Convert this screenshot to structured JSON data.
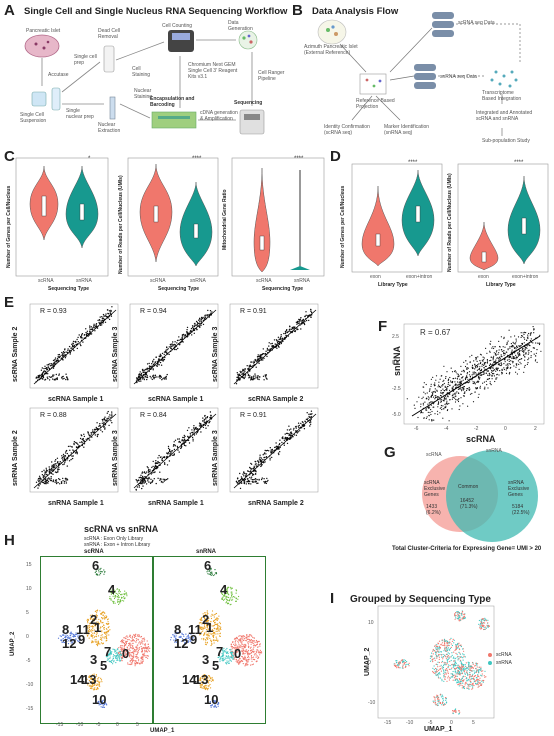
{
  "panelA": {
    "letter": "A",
    "title": "Single Cell and Single Nucleus RNA Sequencing Workflow",
    "labels": {
      "islet": "Pancreatic Islet",
      "accutase": "Accutase",
      "sc_prep": "Single cell prep",
      "dead": "Dead Cell Removal",
      "counting": "Cell Counting",
      "datagen": "Data Generation",
      "cell_staining": "Cell Staining",
      "susp": "Single Cell Suspension",
      "sn_prep": "Single nuclear prep",
      "nuc": "Nuclear Extraction",
      "nuc_stain": "Nuclear Staining",
      "chromium": "Chromium Next GEM Single Cell 3' Reagent Kits v3.1",
      "ranger": "Cell Ranger Pipeline",
      "encap": "Encapsulation and Barcoding",
      "cdna": "cDNA generation & Amplification",
      "seq": "Sequencing"
    }
  },
  "panelB": {
    "letter": "B",
    "title": "Data Analysis Flow",
    "labels": {
      "azimuth": "Azimuth Pancreatic Islet (External Reference)",
      "scdata": "scRNA seq Data",
      "sndata": "snRNA seq Data",
      "refproj": "Reference Based Projection",
      "transcriptome": "Transcriptome Based Integration",
      "identity": "Identity Confirmation (scRNA seq)",
      "marker": "Marker Identification (snRNA seq)",
      "integrated": "Integrated and Annotated scRNA and snRNA",
      "subpop": "Sub-population Study"
    }
  },
  "panelC": {
    "letter": "C",
    "ylabels": [
      "Number of Genes per Cell/Nucleus",
      "Number of Reads per Cell/Nucleus (UMIs)",
      "Mitochondrial Gene Ratio"
    ],
    "xlabel": "Sequencing Type",
    "groups": [
      "scRNA",
      "snRNA"
    ],
    "sig": [
      "*",
      "****",
      "****"
    ],
    "ticks1": [
      "2500",
      "5000",
      "7500",
      "10000"
    ],
    "ticks2": [
      "1e+03",
      "1e+04",
      "1e+05"
    ],
    "ticks3": [
      "0.00",
      "0.25",
      "0.50",
      "0.75",
      "1.00"
    ]
  },
  "panelD": {
    "letter": "D",
    "ylabels": [
      "Number of Genes per Cell/Nucleus",
      "Number of Reads per Cell/Nucleus (UMIs)"
    ],
    "xlabel": "Library Type",
    "groups": [
      "exon",
      "exon+intron"
    ],
    "sig": [
      "****",
      "****"
    ],
    "ticks1": [
      "2500",
      "5000",
      "7500",
      "10000"
    ],
    "ticks2": [
      "1e+03",
      "1e+04",
      "1e+05"
    ]
  },
  "panelE": {
    "letter": "E",
    "plots": [
      {
        "r": "R = 0.93",
        "xlabel": "scRNA Sample 1",
        "ylabel": "scRNA Sample 2"
      },
      {
        "r": "R = 0.94",
        "xlabel": "scRNA Sample 1",
        "ylabel": "scRNA Sample 3"
      },
      {
        "r": "R = 0.91",
        "xlabel": "scRNA Sample 2",
        "ylabel": "scRNA Sample 3"
      },
      {
        "r": "R = 0.88",
        "xlabel": "snRNA Sample 1",
        "ylabel": "snRNA Sample 2"
      },
      {
        "r": "R = 0.84",
        "xlabel": "snRNA Sample 1",
        "ylabel": "snRNA Sample 3"
      },
      {
        "r": "R = 0.91",
        "xlabel": "snRNA Sample 2",
        "ylabel": "snRNA Sample 3"
      }
    ],
    "xticks": [
      "-2.5",
      "0.0",
      "2.5"
    ],
    "yticks": [
      "0",
      "2"
    ]
  },
  "panelF": {
    "letter": "F",
    "r": "R = 0.67",
    "xlabel": "scRNA",
    "ylabel": "snRNA",
    "xticks": [
      "-6",
      "-4",
      "-2",
      "0",
      "2"
    ],
    "yticks": [
      "2.5",
      "0.0",
      "-2.5",
      "-5.0"
    ]
  },
  "panelG": {
    "letter": "G",
    "sc": "scRNA",
    "sn": "snRNA",
    "sc_excl": "scRNA Exclusive Genes",
    "sc_n": "1433",
    "sc_pct": "(6.2%)",
    "common": "Common",
    "common_n": "16452",
    "common_pct": "(71.3%)",
    "sn_excl": "snRNA Exclusive Genes",
    "sn_n": "5184",
    "sn_pct": "(22.5%)",
    "caption": "Total Cluster-Criteria for Expressing Gene= UMI > 20"
  },
  "panelH": {
    "letter": "H",
    "title": "scRNA vs snRNA",
    "sub1": "scRNA : Exon Only Library",
    "sub2": "snRNA : Exon + Intron Library",
    "left": "scRNA",
    "right": "snRNA",
    "xlabel": "UMAP_1",
    "ylabel": "UMAP_2",
    "xticks": [
      "-15",
      "-10",
      "-5",
      "0",
      "5"
    ],
    "yticks": [
      "15",
      "10",
      "5",
      "0",
      "-5",
      "-10",
      "-15"
    ],
    "clusters": [
      "6",
      "4",
      "2",
      "1",
      "8",
      "11",
      "9",
      "12",
      "3",
      "7",
      "5",
      "0",
      "14",
      "13",
      "10"
    ]
  },
  "panelI": {
    "letter": "I",
    "title": "Grouped by Sequencing Type",
    "legend": [
      "scRNA",
      "snRNA"
    ],
    "xlabel": "UMAP_1",
    "ylabel": "UMAP_2",
    "xticks": [
      "-15",
      "-10",
      "-5",
      "0",
      "5"
    ],
    "yticks": [
      "10",
      "0",
      "-10"
    ]
  },
  "colors": {
    "salmon": "#f0776c",
    "teal": "#17998f",
    "orange": "#e7a020",
    "green": "#6fbf3e",
    "blue": "#4a6fd6",
    "cyan": "#3fc6c0",
    "purple": "#8e44ad",
    "pink": "#d35fa0"
  }
}
